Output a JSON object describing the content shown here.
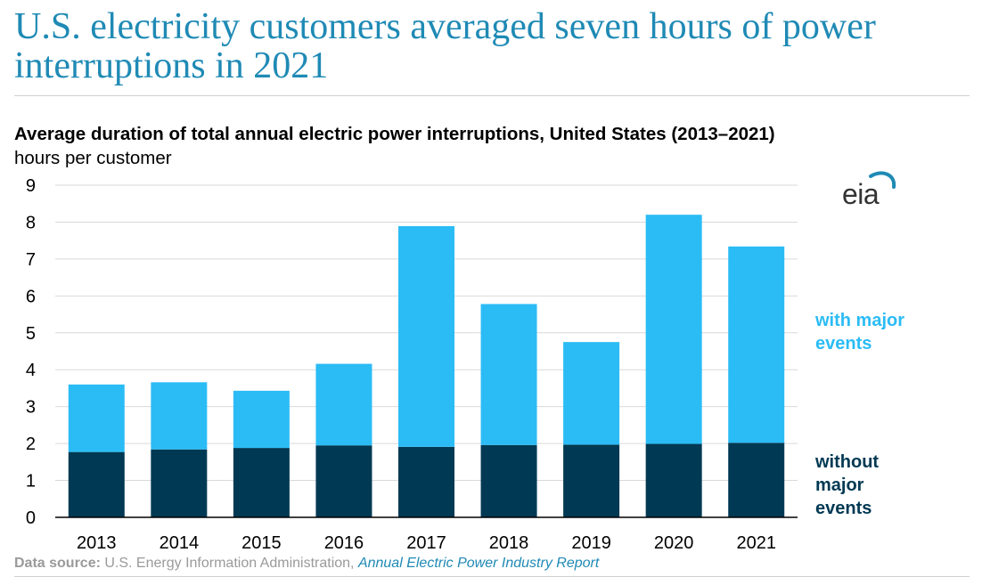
{
  "headline": "U.S. electricity customers averaged seven hours of power interruptions in 2021",
  "logo_text": "eia",
  "colors": {
    "with_major": "#2bbcf5",
    "without_major": "#003953",
    "headline": "#1f8ab5"
  },
  "source": {
    "label": "Data source:",
    "text": " U.S. Energy Information Administration, ",
    "link": "Annual Electric Power Industry Report"
  },
  "legend": {
    "with_major": "with major events",
    "without_major": "without major events"
  },
  "chart_data": {
    "type": "bar",
    "stacked": true,
    "title": "Average duration of total annual electric power interruptions, United States (2013–2021)",
    "ylabel": "hours per customer",
    "xlabel": "",
    "ylim": [
      0,
      9
    ],
    "yticks": [
      0,
      1,
      2,
      3,
      4,
      5,
      6,
      7,
      8,
      9
    ],
    "grid": true,
    "legend_position": "right",
    "categories": [
      "2013",
      "2014",
      "2015",
      "2016",
      "2017",
      "2018",
      "2019",
      "2020",
      "2021"
    ],
    "series": [
      {
        "name": "without major events",
        "values": [
          1.77,
          1.84,
          1.88,
          1.95,
          1.91,
          1.96,
          1.97,
          1.99,
          2.02
        ]
      },
      {
        "name": "with major events",
        "values": [
          1.83,
          1.82,
          1.55,
          2.21,
          5.98,
          3.82,
          2.78,
          6.21,
          5.32
        ]
      }
    ]
  }
}
